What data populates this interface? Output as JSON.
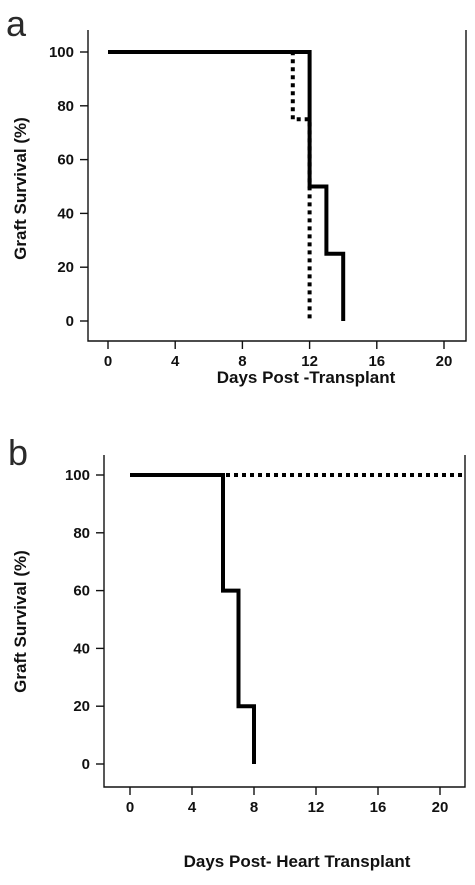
{
  "chart_data": [
    {
      "type": "line",
      "panel_label": "a",
      "xlabel": "Days Post -Transplant",
      "ylabel": "Graft Survival (%)",
      "xlim": [
        0,
        21
      ],
      "ylim": [
        0,
        100
      ],
      "xticks": [
        0,
        4,
        8,
        12,
        16,
        20
      ],
      "yticks": [
        0,
        20,
        40,
        60,
        80,
        100
      ],
      "grid": false,
      "series": [
        {
          "style": "solid",
          "x": [
            0,
            12,
            12,
            13,
            13,
            14,
            14
          ],
          "y": [
            100,
            100,
            50,
            50,
            25,
            25,
            0
          ]
        },
        {
          "style": "dotted",
          "x": [
            0,
            11,
            11,
            12,
            12
          ],
          "y": [
            100,
            100,
            75,
            75,
            0
          ]
        }
      ]
    },
    {
      "type": "line",
      "panel_label": "b",
      "xlabel": "Days Post- Heart Transplant",
      "ylabel": "Graft Survival (%)",
      "xlim": [
        -1,
        21.5
      ],
      "ylim": [
        0,
        100
      ],
      "xticks": [
        0,
        4,
        8,
        12,
        16,
        20
      ],
      "yticks": [
        0,
        20,
        40,
        60,
        80,
        100
      ],
      "grid": false,
      "series": [
        {
          "style": "solid",
          "x": [
            0,
            6,
            6,
            7,
            7,
            8,
            8
          ],
          "y": [
            100,
            100,
            60,
            60,
            20,
            20,
            0
          ]
        },
        {
          "style": "dotted",
          "x": [
            0,
            21.5
          ],
          "y": [
            100,
            100
          ]
        }
      ]
    }
  ]
}
